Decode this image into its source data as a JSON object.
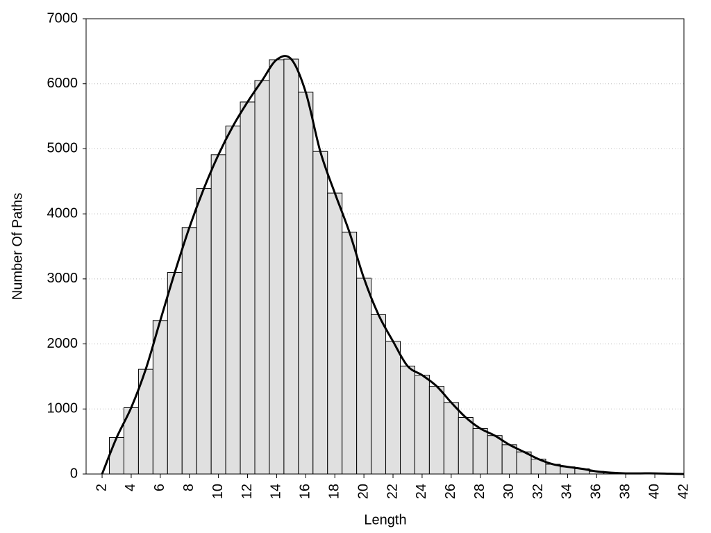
{
  "chart_data": {
    "type": "histogram",
    "xlabel": "Length",
    "ylabel": "Number Of Paths",
    "bins": [
      2.5,
      3.5,
      4.5,
      5.5,
      6.5,
      7.5,
      8.5,
      9.5,
      10.5,
      11.5,
      12.5,
      13.5,
      14.5,
      15.5,
      16.5,
      17.5,
      18.5,
      19.5,
      20.5,
      21.5,
      22.5,
      23.5,
      24.5,
      25.5,
      26.5,
      27.5,
      28.5,
      29.5,
      30.5,
      31.5,
      32.5,
      33.5,
      34.5,
      35.5,
      36.5,
      37.5,
      38.5,
      39.5,
      40.5,
      41.5
    ],
    "counts": [
      560,
      1020,
      1610,
      2360,
      3100,
      3790,
      4390,
      4910,
      5350,
      5720,
      6050,
      6370,
      6380,
      5870,
      4960,
      4320,
      3720,
      3010,
      2450,
      2040,
      1660,
      1520,
      1350,
      1100,
      870,
      700,
      590,
      450,
      340,
      230,
      150,
      110,
      80,
      40,
      20,
      10,
      10,
      10,
      5
    ],
    "color": "#e0e0e0",
    "curve": {
      "x": [
        2,
        3,
        4,
        5,
        6,
        7,
        8,
        9,
        10,
        11,
        12,
        13,
        14,
        15,
        16,
        17,
        18,
        19,
        20,
        21,
        22,
        23,
        24,
        25,
        26,
        27,
        28,
        29,
        30,
        31,
        32,
        33,
        34,
        35,
        36,
        37,
        38,
        39,
        40,
        41,
        42
      ],
      "values": [
        0,
        560,
        1020,
        1610,
        2360,
        3100,
        3790,
        4390,
        4910,
        5350,
        5720,
        6050,
        6370,
        6380,
        5870,
        4960,
        4320,
        3720,
        3010,
        2450,
        2040,
        1660,
        1520,
        1350,
        1100,
        870,
        700,
        590,
        450,
        340,
        230,
        150,
        110,
        80,
        40,
        20,
        10,
        10,
        10,
        5,
        0
      ],
      "color": "#000000"
    },
    "xlim": [
      0.9,
      42
    ],
    "ylim": [
      0,
      7000
    ],
    "xticks": [
      2,
      4,
      6,
      8,
      10,
      12,
      14,
      16,
      18,
      20,
      22,
      24,
      26,
      28,
      30,
      32,
      34,
      36,
      38,
      40,
      42
    ],
    "yticks": [
      0,
      1000,
      2000,
      3000,
      4000,
      5000,
      6000,
      7000
    ],
    "grid": true
  }
}
